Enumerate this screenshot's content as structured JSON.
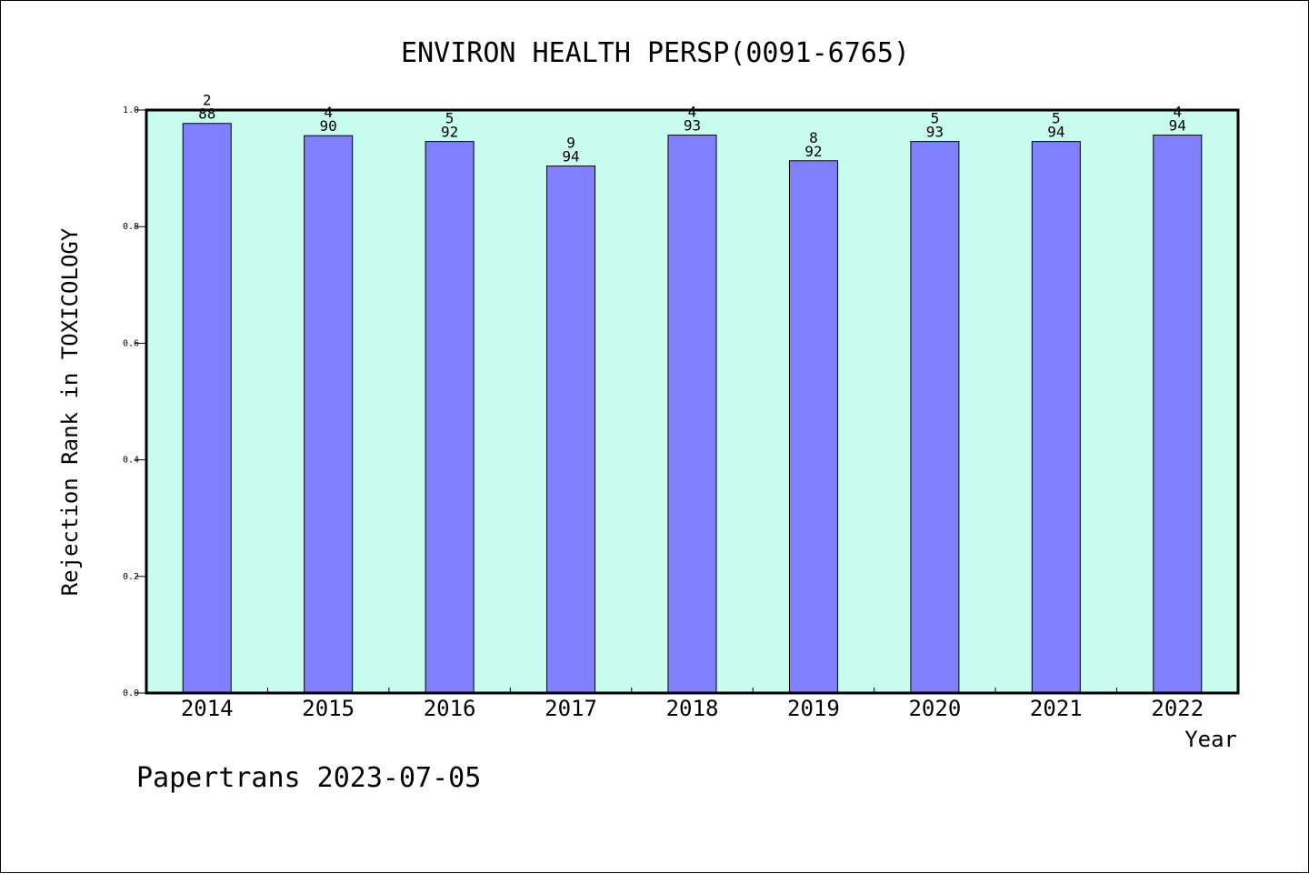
{
  "chart_data": {
    "type": "bar",
    "title": "ENVIRON HEALTH PERSP(0091-6765)",
    "xlabel": "Year",
    "ylabel": "Rejection Rank in TOXICOLOGY",
    "footer": "Papertrans 2023-07-05",
    "categories": [
      "2014",
      "2015",
      "2016",
      "2017",
      "2018",
      "2019",
      "2020",
      "2021",
      "2022"
    ],
    "values": [
      0.977,
      0.956,
      0.946,
      0.904,
      0.957,
      0.913,
      0.946,
      0.946,
      0.957
    ],
    "label_top": [
      "2",
      "4",
      "5",
      "9",
      "4",
      "8",
      "5",
      "5",
      "4"
    ],
    "label_bottom": [
      "88",
      "90",
      "92",
      "94",
      "93",
      "92",
      "93",
      "94",
      "94"
    ],
    "ylim": [
      0,
      1.0
    ],
    "yticks": [
      "0.0",
      "0.2",
      "0.4",
      "0.6",
      "0.8",
      "1.0"
    ],
    "grid": false,
    "colors": {
      "plot_bg": "#c8fcee",
      "bar": "#8080ff",
      "bar_edge": "#000000"
    }
  }
}
